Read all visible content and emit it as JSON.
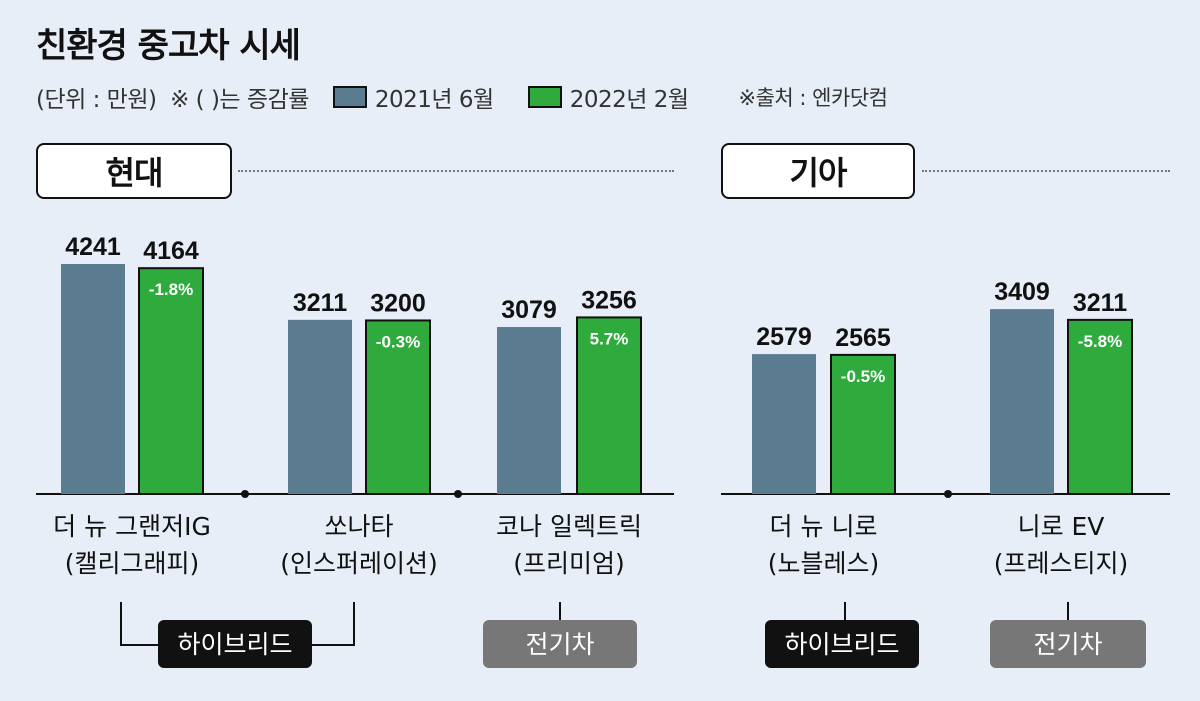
{
  "title": "친환경 중고차 시세",
  "unit": "(단위 : 만원)",
  "note": "※ ( )는 증감률",
  "source": "※출처 : 엔카닷컴",
  "colors": {
    "series_2021": "#5b7b90",
    "series_2022": "#2eab3c",
    "hybrid_badge": "#111111",
    "ev_badge": "#777777",
    "background": "#e8eef7"
  },
  "groups": {
    "hyundai": "현대",
    "kia": "기아"
  },
  "categories_text": {
    "hybrid": "하이브리드",
    "ev": "전기차"
  },
  "chart_data": {
    "type": "bar",
    "title": "친환경 중고차 시세",
    "ylabel": "",
    "series": [
      {
        "name": "2021년 6월",
        "values": [
          4241,
          3211,
          3079,
          2579,
          3409
        ]
      },
      {
        "name": "2022년 2월",
        "values": [
          4164,
          3200,
          3256,
          2565,
          3211
        ]
      }
    ],
    "change_labels": [
      "-1.8%",
      "-0.3%",
      "5.7%",
      "-0.5%",
      "-5.8%"
    ],
    "categories": [
      {
        "line1": "더 뉴 그랜저IG",
        "line2": "(캘리그래피)",
        "maker": "현대",
        "kind": "하이브리드"
      },
      {
        "line1": "쏘나타",
        "line2": "(인스퍼레이션)",
        "maker": "현대",
        "kind": "하이브리드"
      },
      {
        "line1": "코나 일렉트릭",
        "line2": "(프리미엄)",
        "maker": "현대",
        "kind": "전기차"
      },
      {
        "line1": "더 뉴 니로",
        "line2": "(노블레스)",
        "maker": "기아",
        "kind": "하이브리드"
      },
      {
        "line1": "니로 EV",
        "line2": "(프레스티지)",
        "maker": "기아",
        "kind": "전기차"
      }
    ],
    "ylim": [
      0,
      4500
    ],
    "grid": false,
    "legend": "top"
  }
}
